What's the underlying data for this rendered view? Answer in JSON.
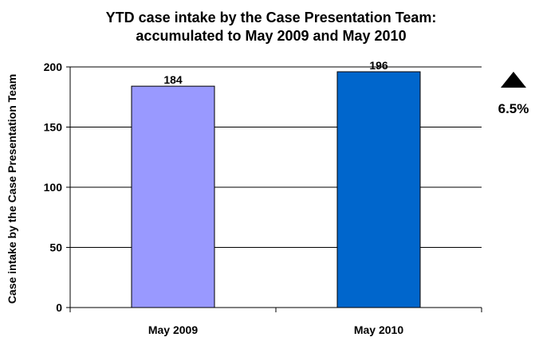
{
  "chart_data": {
    "type": "bar",
    "title": [
      "YTD case intake by the Case Presentation Team:",
      "accumulated to May 2009 and May 2010"
    ],
    "xlabel": "",
    "ylabel": "Case intake by the Case Presentation Team",
    "categories": [
      "May 2009",
      "May 2010"
    ],
    "values": [
      184,
      196
    ],
    "bar_colors": [
      "#9999ff",
      "#0066cc"
    ],
    "ylim": [
      0,
      200
    ],
    "yticks": [
      0,
      50,
      100,
      150,
      200
    ],
    "grid": true,
    "legend": "none",
    "annotation": {
      "text": "6.5%",
      "icon": "triangle-up-icon"
    }
  }
}
